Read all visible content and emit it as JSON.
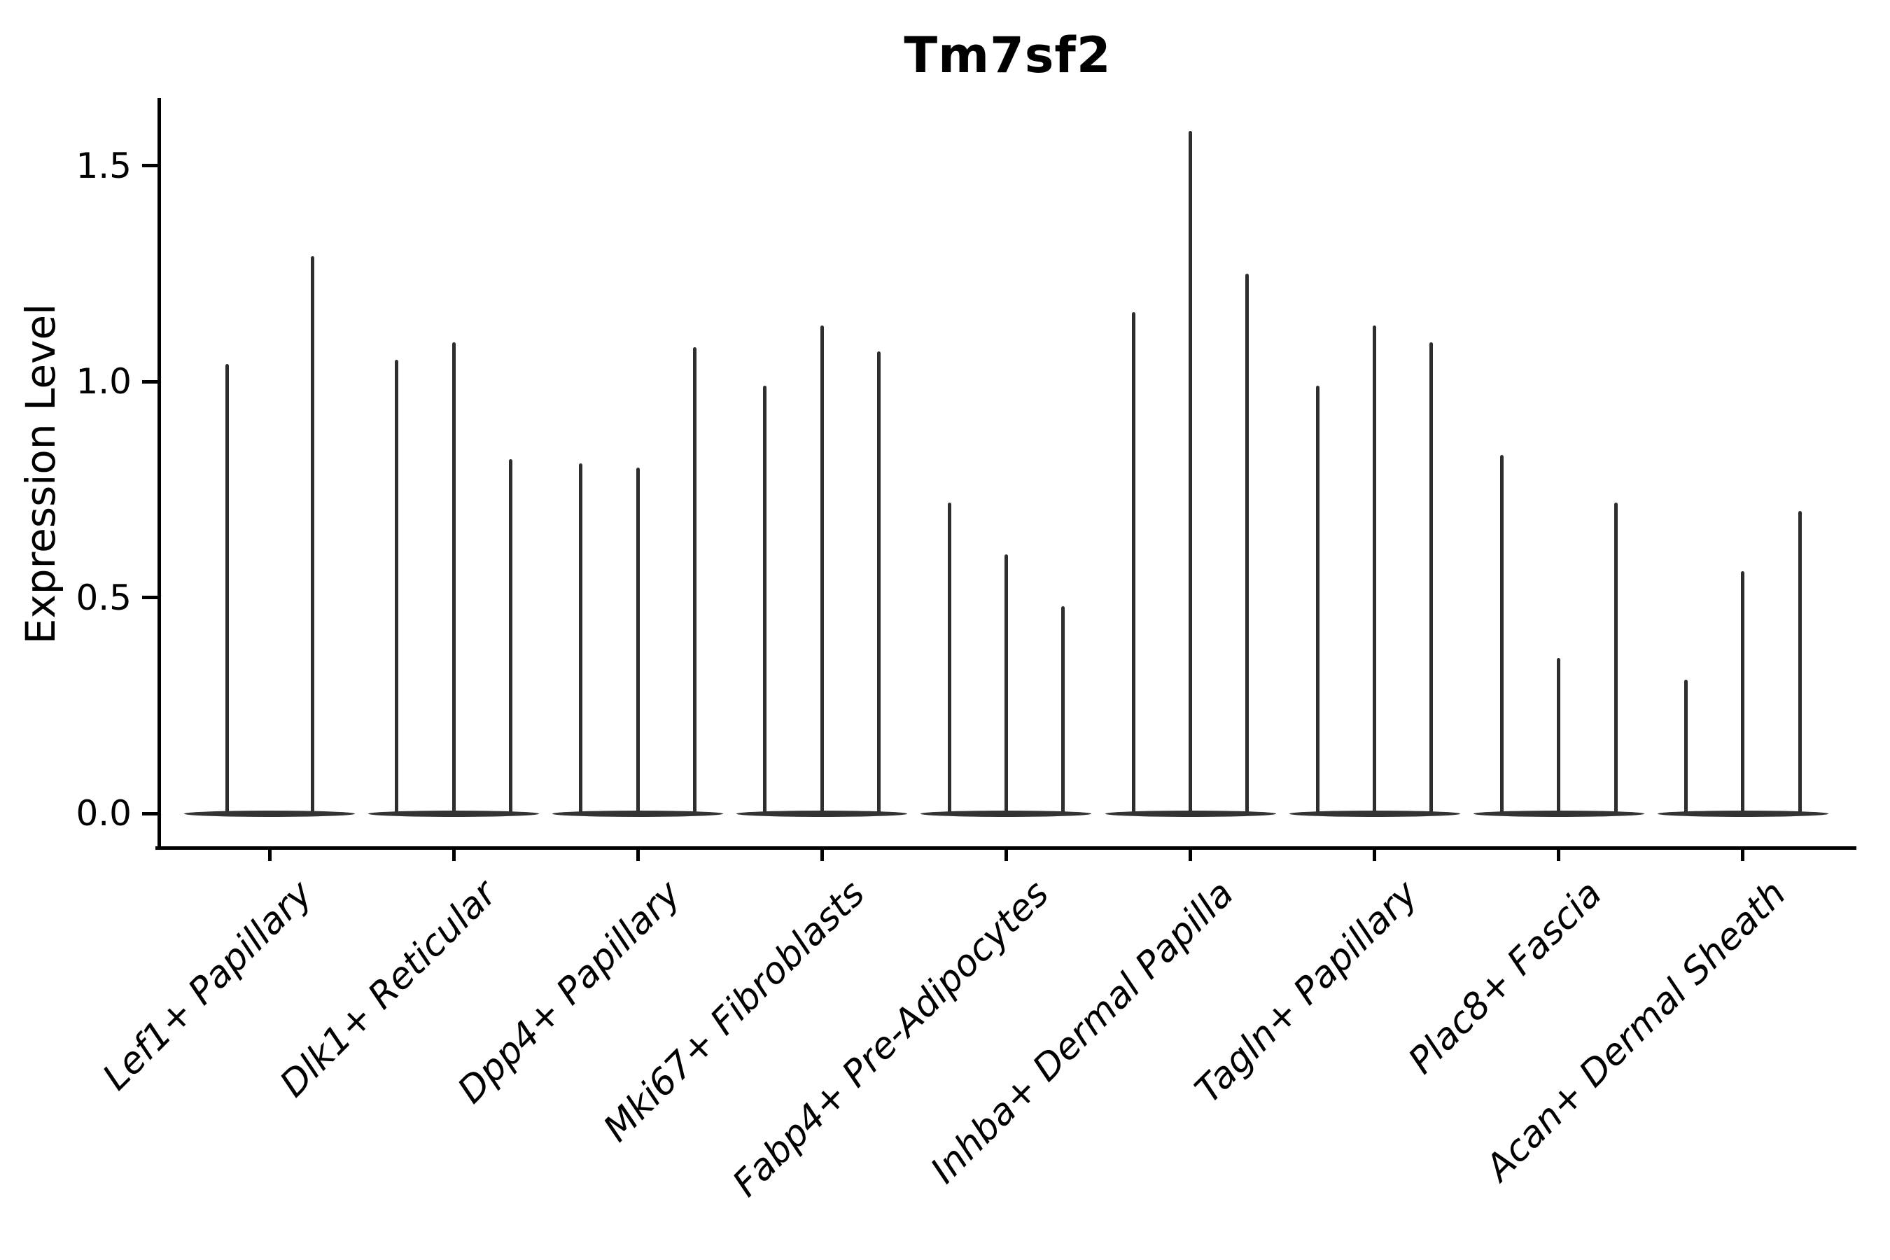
{
  "figure": {
    "background": "#ffffff"
  },
  "chart_data": {
    "type": "violin",
    "title": "Tm7sf2",
    "ylabel": "Expression Level",
    "xlabel": "",
    "ytick_labels": [
      "0.0",
      "0.5",
      "1.0",
      "1.5"
    ],
    "ylim": [
      0,
      1.66
    ],
    "grid": false,
    "legend": "none",
    "x_tick_rotation_deg": 45,
    "style": "sparse expression violins: wide flat base at 0 with thin spikes up to the maximum expression value",
    "categories": [
      "Lef1+ Papillary",
      "Dlk1+ Reticular",
      "Dpp4+ Papillary",
      "Mki67+ Fibroblasts",
      "Fabp4+ Pre-Adipocytes",
      "Inhba+ Dermal Papilla",
      "Tagln+ Papillary",
      "Plac8+ Fascia",
      "Acan+ Dermal Sheath"
    ],
    "series": [
      {
        "category": "Lef1+ Papillary",
        "violin_spike_maxima": [
          1.04,
          1.29
        ]
      },
      {
        "category": "Dlk1+ Reticular",
        "violin_spike_maxima": [
          1.05,
          1.09,
          0.82
        ]
      },
      {
        "category": "Dpp4+ Papillary",
        "violin_spike_maxima": [
          0.81,
          0.8,
          1.08
        ]
      },
      {
        "category": "Mki67+ Fibroblasts",
        "violin_spike_maxima": [
          0.99,
          1.13,
          1.07
        ]
      },
      {
        "category": "Fabp4+ Pre-Adipocytes",
        "violin_spike_maxima": [
          0.72,
          0.6,
          0.48
        ]
      },
      {
        "category": "Inhba+ Dermal Papilla",
        "violin_spike_maxima": [
          1.16,
          1.58,
          1.25
        ]
      },
      {
        "category": "Tagln+ Papillary",
        "violin_spike_maxima": [
          0.99,
          1.13,
          1.09
        ]
      },
      {
        "category": "Plac8+ Fascia",
        "violin_spike_maxima": [
          0.83,
          0.36,
          0.72
        ]
      },
      {
        "category": "Acan+ Dermal Sheath",
        "violin_spike_maxima": [
          0.31,
          0.56,
          0.7
        ]
      }
    ],
    "colors": {
      "violin": "#2e2e2e",
      "violin_base": "#333333",
      "axis": "#000000",
      "text": "#000000"
    }
  }
}
